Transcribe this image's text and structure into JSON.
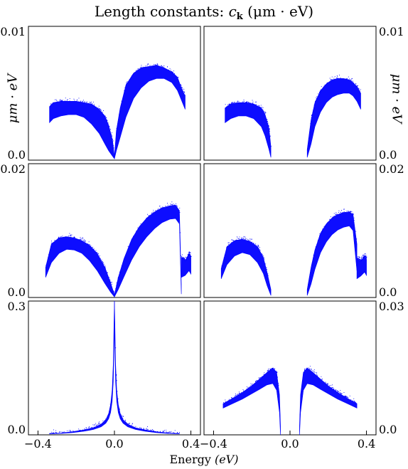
{
  "figure": {
    "title_prefix": "Length constants: ",
    "title_symbol": "c",
    "title_subscript": "k",
    "title_unit": "(μm · eV)",
    "ylabel": "μm · eV",
    "xlabel_text": "Energy ",
    "xlabel_unit": "(eV)",
    "color": "#0000ff"
  },
  "chart_data": [
    {
      "type": "scatter",
      "panel": "row1-left",
      "xlim": [
        -0.45,
        0.45
      ],
      "ylim": [
        0,
        0.01
      ],
      "yticks": [
        "0.0",
        "0.01"
      ],
      "show_xticks": false,
      "bands": [
        {
          "x": [
            -0.34,
            -0.32,
            -0.28,
            -0.24,
            -0.2,
            -0.16,
            -0.12,
            -0.08,
            -0.05,
            -0.03,
            -0.01,
            0.0
          ],
          "low": [
            0.0028,
            0.0031,
            0.0033,
            0.0034,
            0.0034,
            0.0032,
            0.0027,
            0.002,
            0.0012,
            0.0007,
            0.0003,
            0.0001
          ],
          "high": [
            0.004,
            0.0043,
            0.0044,
            0.0044,
            0.0044,
            0.0043,
            0.0042,
            0.0038,
            0.0033,
            0.0026,
            0.0015,
            0.0003
          ]
        },
        {
          "x": [
            0.0,
            0.01,
            0.03,
            0.06,
            0.1,
            0.14,
            0.18,
            0.22,
            0.26,
            0.3,
            0.33,
            0.35,
            0.37
          ],
          "low": [
            0.0001,
            0.0007,
            0.0017,
            0.0032,
            0.0046,
            0.0054,
            0.0059,
            0.0061,
            0.0061,
            0.0058,
            0.0052,
            0.0045,
            0.0038
          ],
          "high": [
            0.0003,
            0.0022,
            0.0039,
            0.0056,
            0.0065,
            0.0069,
            0.007,
            0.0071,
            0.0069,
            0.0066,
            0.0062,
            0.0054,
            0.0048
          ]
        }
      ]
    },
    {
      "type": "scatter",
      "panel": "row1-right",
      "xlim": [
        -0.45,
        0.45
      ],
      "ylim": [
        0,
        0.01
      ],
      "yticks": [
        "0.0",
        "0.01"
      ],
      "show_xticks": false,
      "bands": [
        {
          "x": [
            -0.34,
            -0.31,
            -0.27,
            -0.23,
            -0.19,
            -0.15,
            -0.13,
            -0.11,
            -0.1
          ],
          "low": [
            0.0028,
            0.0031,
            0.0033,
            0.0033,
            0.0031,
            0.0025,
            0.0018,
            0.0008,
            0.0002
          ],
          "high": [
            0.0039,
            0.0042,
            0.0043,
            0.0043,
            0.0042,
            0.0039,
            0.0034,
            0.0024,
            0.001
          ]
        },
        {
          "x": [
            0.09,
            0.11,
            0.13,
            0.16,
            0.19,
            0.22,
            0.25,
            0.28,
            0.31,
            0.33,
            0.35,
            0.37
          ],
          "low": [
            0.0002,
            0.0012,
            0.0025,
            0.0036,
            0.0043,
            0.0047,
            0.0049,
            0.005,
            0.005,
            0.0048,
            0.0044,
            0.0038
          ],
          "high": [
            0.0008,
            0.003,
            0.0043,
            0.0052,
            0.0057,
            0.006,
            0.0061,
            0.0061,
            0.006,
            0.0058,
            0.0055,
            0.005
          ]
        }
      ]
    },
    {
      "type": "scatter",
      "panel": "row2-left",
      "xlim": [
        -0.45,
        0.45
      ],
      "ylim": [
        0,
        0.02
      ],
      "yticks": [
        "0.0",
        "0.02"
      ],
      "show_xticks": false,
      "bands": [
        {
          "x": [
            -0.36,
            -0.33,
            -0.29,
            -0.25,
            -0.21,
            -0.17,
            -0.13,
            -0.09,
            -0.05,
            -0.02,
            0.0
          ],
          "low": [
            0.003,
            0.0052,
            0.0066,
            0.0072,
            0.0071,
            0.0066,
            0.0055,
            0.004,
            0.0021,
            0.0008,
            0.0001
          ],
          "high": [
            0.0045,
            0.008,
            0.0089,
            0.0091,
            0.0089,
            0.0085,
            0.0078,
            0.0066,
            0.0045,
            0.0022,
            0.0004
          ]
        },
        {
          "x": [
            0.0,
            0.02,
            0.05,
            0.09,
            0.13,
            0.17,
            0.21,
            0.25,
            0.29,
            0.32,
            0.34,
            0.35
          ],
          "low": [
            0.0001,
            0.0012,
            0.0031,
            0.0056,
            0.0076,
            0.0091,
            0.0103,
            0.0112,
            0.0117,
            0.0118,
            0.011,
            0.0005
          ],
          "high": [
            0.0004,
            0.003,
            0.0058,
            0.0087,
            0.0106,
            0.0119,
            0.0128,
            0.0134,
            0.0137,
            0.0138,
            0.013,
            0.002
          ]
        },
        {
          "x": [
            0.35,
            0.37,
            0.39,
            0.4
          ],
          "low": [
            0.003,
            0.0033,
            0.004,
            0.0035
          ],
          "high": [
            0.006,
            0.0055,
            0.0065,
            0.006
          ]
        }
      ]
    },
    {
      "type": "scatter",
      "panel": "row2-right",
      "xlim": [
        -0.45,
        0.45
      ],
      "ylim": [
        0,
        0.02
      ],
      "yticks": [
        "0.0",
        "0.02"
      ],
      "show_xticks": false,
      "bands": [
        {
          "x": [
            -0.36,
            -0.33,
            -0.29,
            -0.25,
            -0.21,
            -0.17,
            -0.14,
            -0.12,
            -0.1
          ],
          "low": [
            0.0028,
            0.0049,
            0.0062,
            0.0067,
            0.0064,
            0.0052,
            0.0036,
            0.0018,
            0.0003
          ],
          "high": [
            0.0043,
            0.0076,
            0.0085,
            0.0087,
            0.0084,
            0.0076,
            0.006,
            0.0038,
            0.0012
          ]
        },
        {
          "x": [
            0.09,
            0.11,
            0.13,
            0.16,
            0.19,
            0.22,
            0.25,
            0.28,
            0.31,
            0.33,
            0.35
          ],
          "low": [
            0.0003,
            0.002,
            0.0042,
            0.0067,
            0.0083,
            0.0094,
            0.0101,
            0.0105,
            0.0107,
            0.01,
            0.004
          ],
          "high": [
            0.0012,
            0.0045,
            0.0071,
            0.0096,
            0.011,
            0.0119,
            0.0124,
            0.0127,
            0.0128,
            0.0124,
            0.008
          ]
        },
        {
          "x": [
            0.35,
            0.37,
            0.39,
            0.4
          ],
          "low": [
            0.0028,
            0.0032,
            0.0038,
            0.0033
          ],
          "high": [
            0.0058,
            0.0054,
            0.0062,
            0.0057
          ]
        }
      ]
    },
    {
      "type": "scatter",
      "panel": "row3-left",
      "xlim": [
        -0.45,
        0.45
      ],
      "ylim": [
        0,
        0.3
      ],
      "yticks": [
        "0.0",
        "0.3"
      ],
      "show_xticks": true,
      "xticks": [
        "-0.4",
        "0.0",
        "0.4"
      ],
      "bands": [
        {
          "x": [
            -0.34,
            -0.28,
            -0.22,
            -0.16,
            -0.11,
            -0.07,
            -0.045,
            -0.03,
            -0.02,
            -0.012,
            -0.006,
            -0.002,
            0.0
          ],
          "low": [
            0.002,
            0.003,
            0.005,
            0.008,
            0.012,
            0.018,
            0.026,
            0.036,
            0.05,
            0.075,
            0.12,
            0.2,
            0.26
          ],
          "high": [
            0.003,
            0.004,
            0.007,
            0.011,
            0.016,
            0.024,
            0.034,
            0.048,
            0.068,
            0.1,
            0.16,
            0.26,
            0.3
          ]
        },
        {
          "x": [
            0.0,
            0.002,
            0.006,
            0.012,
            0.02,
            0.03,
            0.045,
            0.07,
            0.11,
            0.16,
            0.22,
            0.28,
            0.34
          ],
          "low": [
            0.26,
            0.2,
            0.12,
            0.075,
            0.05,
            0.036,
            0.026,
            0.018,
            0.012,
            0.008,
            0.005,
            0.003,
            0.002
          ],
          "high": [
            0.3,
            0.26,
            0.16,
            0.1,
            0.068,
            0.048,
            0.034,
            0.024,
            0.016,
            0.011,
            0.007,
            0.004,
            0.003
          ]
        }
      ]
    },
    {
      "type": "scatter",
      "panel": "row3-right",
      "xlim": [
        -0.45,
        0.45
      ],
      "ylim": [
        0,
        0.03
      ],
      "yticks": [
        "0.0",
        "0.03"
      ],
      "show_xticks": true,
      "xticks": [
        "-0.4",
        "0.0",
        "0.4"
      ],
      "bands": [
        {
          "x": [
            -0.35,
            -0.3,
            -0.25,
            -0.2,
            -0.16,
            -0.12,
            -0.09,
            -0.07,
            -0.055,
            -0.05
          ],
          "low": [
            0.006,
            0.007,
            0.008,
            0.0092,
            0.0102,
            0.0112,
            0.0115,
            0.01,
            0.005,
            0.0
          ],
          "high": [
            0.007,
            0.0082,
            0.0095,
            0.011,
            0.0125,
            0.014,
            0.015,
            0.014,
            0.009,
            0.002
          ]
        },
        {
          "x": [
            0.05,
            0.055,
            0.07,
            0.09,
            0.12,
            0.16,
            0.2,
            0.25,
            0.3,
            0.35
          ],
          "low": [
            0.0,
            0.005,
            0.01,
            0.0115,
            0.0112,
            0.0102,
            0.0092,
            0.008,
            0.007,
            0.006
          ],
          "high": [
            0.002,
            0.009,
            0.014,
            0.015,
            0.014,
            0.0125,
            0.011,
            0.0095,
            0.0082,
            0.007
          ]
        }
      ]
    }
  ]
}
